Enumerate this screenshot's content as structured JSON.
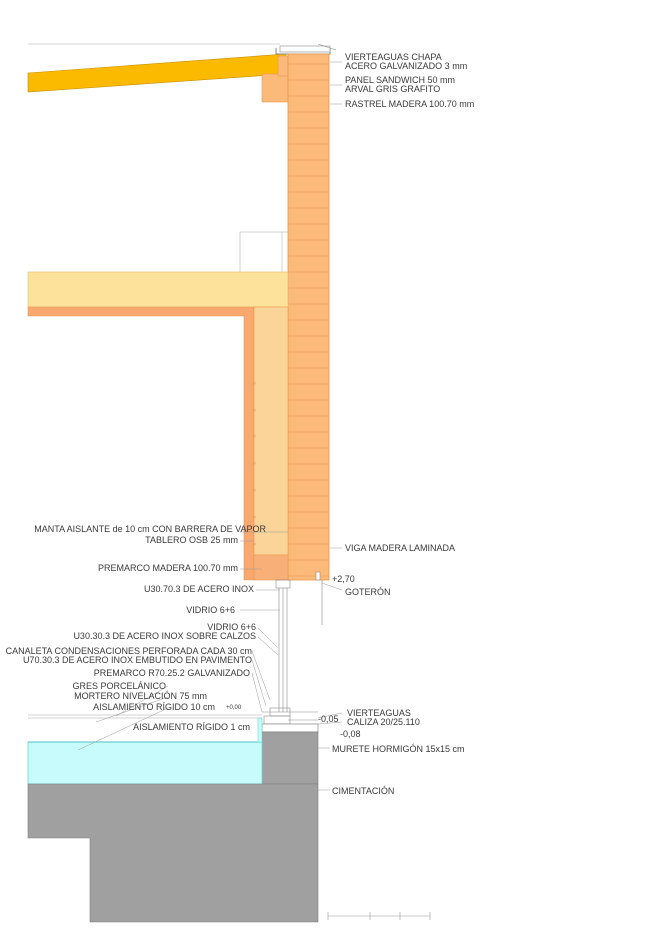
{
  "labels": {
    "vierteaguas_chapa_1": "VIERTEAGUAS CHAPA",
    "vierteaguas_chapa_2": "ACERO GALVANIZADO 3 mm",
    "panel_sandwich_1": "PANEL SANDWICH 50 mm",
    "panel_sandwich_2": "ARVAL GRIS GRAFITO",
    "rastrel": "RASTREL MADERA 100.70 mm",
    "manta_aislante": "MANTA AISLANTE de 10 cm CON BARRERA DE VAPOR",
    "tablero_osb": "TABLERO OSB 25 mm",
    "viga_madera": "VIGA MADERA LAMINADA",
    "premarco_madera": "PREMARCO MADERA 100.70 mm",
    "level_270": "+2,70",
    "u30_70": "U30.70.3 DE ACERO INOX",
    "goteron": "GOTERÓN",
    "vidrio_1": "VIDRIO 6+6",
    "vidrio_2": "VIDRIO 6+6",
    "u30_30": "U30.30.3 DE ACERO INOX SOBRE CALZOS",
    "canaleta": "CANALETA CONDENSACIONES PERFORADA CADA 30 cm",
    "u70_30": "U70.30.3 DE ACERO INOX EMBUTIDO EN PAVIMENTO",
    "premarco_r70": "PREMARCO R70.25.2 GALVANIZADO",
    "gres": "GRES PORCELÁNICO",
    "mortero": "MORTERO NIVELACIÓN 75 mm",
    "aislamiento_10": "AISLAMIENTO RÍGIDO 10 cm",
    "level_000": "+0,00",
    "level_005": "-0,05",
    "vierteaguas_caliza_1": "VIERTEAGUAS",
    "vierteaguas_caliza_2": "CALIZA 20/25.110",
    "aislamiento_1": "AISLAMIENTO RÍGIDO 1 cm",
    "level_008": "-0,08",
    "murete": "MURETE HORMIGÓN 15x15 cm",
    "cimentacion": "CIMENTACIÓN"
  },
  "colors": {
    "cladding": "#fbb97a",
    "cladding_joint": "#e8974f",
    "roof_beam": "#fbba00",
    "insulation_manta": "#fde29c",
    "osb_board": "#f9a870",
    "premarco": "#f9b078",
    "rigid_insulation": "#c8fbfb",
    "concrete": "#a0a0a0",
    "line": "#8a8a8a"
  }
}
